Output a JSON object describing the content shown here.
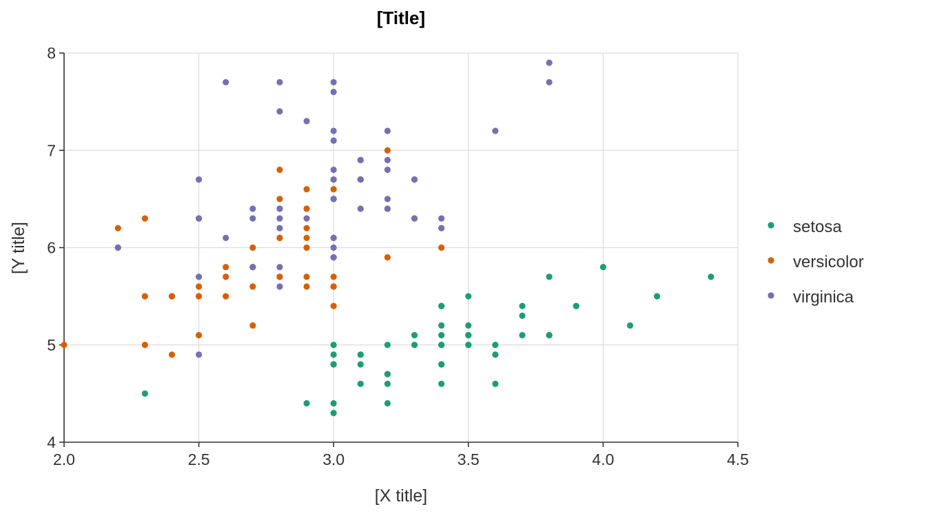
{
  "chart_data": {
    "type": "scatter",
    "title": "[Title]",
    "xlabel": "[X title]",
    "ylabel": "[Y title]",
    "xlim": [
      2.0,
      4.5
    ],
    "ylim": [
      4,
      8
    ],
    "x_ticks": [
      "2.0",
      "2.5",
      "3.0",
      "3.5",
      "4.0",
      "4.5"
    ],
    "y_ticks": [
      "4",
      "5",
      "6",
      "7",
      "8"
    ],
    "grid": true,
    "legend_position": "right",
    "series": [
      {
        "name": "setosa",
        "color": "#1b9e77",
        "points": [
          [
            3.5,
            5.1
          ],
          [
            3.0,
            4.9
          ],
          [
            3.2,
            4.7
          ],
          [
            3.1,
            4.6
          ],
          [
            3.6,
            5.0
          ],
          [
            3.9,
            5.4
          ],
          [
            3.4,
            4.6
          ],
          [
            3.4,
            5.0
          ],
          [
            2.9,
            4.4
          ],
          [
            3.1,
            4.9
          ],
          [
            3.7,
            5.4
          ],
          [
            3.4,
            4.8
          ],
          [
            3.0,
            4.8
          ],
          [
            3.0,
            4.3
          ],
          [
            4.0,
            5.8
          ],
          [
            4.4,
            5.7
          ],
          [
            3.9,
            5.4
          ],
          [
            3.5,
            5.1
          ],
          [
            3.8,
            5.7
          ],
          [
            3.8,
            5.1
          ],
          [
            3.4,
            5.4
          ],
          [
            3.7,
            5.1
          ],
          [
            3.6,
            4.6
          ],
          [
            3.3,
            5.1
          ],
          [
            3.4,
            4.8
          ],
          [
            3.0,
            5.0
          ],
          [
            3.4,
            5.0
          ],
          [
            3.5,
            5.2
          ],
          [
            3.4,
            5.2
          ],
          [
            3.2,
            4.7
          ],
          [
            3.1,
            4.8
          ],
          [
            3.4,
            5.4
          ],
          [
            4.1,
            5.2
          ],
          [
            4.2,
            5.5
          ],
          [
            3.1,
            4.9
          ],
          [
            3.2,
            5.0
          ],
          [
            3.5,
            5.5
          ],
          [
            3.6,
            4.9
          ],
          [
            3.0,
            4.4
          ],
          [
            3.4,
            5.1
          ],
          [
            3.5,
            5.0
          ],
          [
            2.3,
            4.5
          ],
          [
            3.2,
            4.4
          ],
          [
            3.5,
            5.0
          ],
          [
            3.8,
            5.1
          ],
          [
            3.0,
            4.8
          ],
          [
            3.8,
            5.1
          ],
          [
            3.2,
            4.6
          ],
          [
            3.7,
            5.3
          ],
          [
            3.3,
            5.0
          ]
        ]
      },
      {
        "name": "versicolor",
        "color": "#d95f02",
        "points": [
          [
            3.2,
            7.0
          ],
          [
            3.2,
            6.4
          ],
          [
            3.1,
            6.9
          ],
          [
            2.3,
            5.5
          ],
          [
            2.8,
            6.5
          ],
          [
            2.8,
            5.7
          ],
          [
            3.3,
            6.3
          ],
          [
            2.4,
            4.9
          ],
          [
            2.9,
            6.6
          ],
          [
            2.7,
            5.2
          ],
          [
            2.0,
            5.0
          ],
          [
            3.0,
            5.9
          ],
          [
            2.2,
            6.0
          ],
          [
            2.9,
            6.1
          ],
          [
            2.9,
            5.6
          ],
          [
            3.1,
            6.7
          ],
          [
            3.0,
            5.6
          ],
          [
            2.7,
            5.8
          ],
          [
            2.2,
            6.2
          ],
          [
            2.5,
            5.6
          ],
          [
            3.2,
            5.9
          ],
          [
            2.8,
            6.1
          ],
          [
            2.5,
            6.3
          ],
          [
            2.8,
            6.1
          ],
          [
            2.9,
            6.4
          ],
          [
            3.0,
            6.6
          ],
          [
            2.8,
            6.8
          ],
          [
            3.0,
            6.7
          ],
          [
            2.9,
            6.0
          ],
          [
            2.6,
            5.7
          ],
          [
            2.4,
            5.5
          ],
          [
            2.4,
            5.5
          ],
          [
            2.7,
            5.8
          ],
          [
            2.7,
            6.0
          ],
          [
            3.0,
            5.4
          ],
          [
            3.4,
            6.0
          ],
          [
            3.1,
            6.7
          ],
          [
            2.3,
            6.3
          ],
          [
            3.0,
            5.6
          ],
          [
            2.5,
            5.5
          ],
          [
            2.6,
            5.5
          ],
          [
            3.0,
            6.1
          ],
          [
            2.6,
            5.8
          ],
          [
            2.3,
            5.0
          ],
          [
            2.7,
            5.6
          ],
          [
            3.0,
            5.7
          ],
          [
            2.9,
            5.7
          ],
          [
            2.9,
            6.2
          ],
          [
            2.5,
            5.1
          ],
          [
            2.8,
            5.7
          ]
        ]
      },
      {
        "name": "virginica",
        "color": "#7570b3",
        "points": [
          [
            3.3,
            6.3
          ],
          [
            2.7,
            5.8
          ],
          [
            3.0,
            7.1
          ],
          [
            2.9,
            6.3
          ],
          [
            3.0,
            6.5
          ],
          [
            3.0,
            7.6
          ],
          [
            2.5,
            4.9
          ],
          [
            2.9,
            7.3
          ],
          [
            2.5,
            6.7
          ],
          [
            3.6,
            7.2
          ],
          [
            3.2,
            6.5
          ],
          [
            2.7,
            6.4
          ],
          [
            3.0,
            6.8
          ],
          [
            2.5,
            5.7
          ],
          [
            2.8,
            5.8
          ],
          [
            3.2,
            6.4
          ],
          [
            3.0,
            6.5
          ],
          [
            3.8,
            7.7
          ],
          [
            2.6,
            7.7
          ],
          [
            2.2,
            6.0
          ],
          [
            3.2,
            6.9
          ],
          [
            2.8,
            5.6
          ],
          [
            2.8,
            7.7
          ],
          [
            2.7,
            6.3
          ],
          [
            3.3,
            6.7
          ],
          [
            3.2,
            7.2
          ],
          [
            2.8,
            6.2
          ],
          [
            3.0,
            6.1
          ],
          [
            2.8,
            6.4
          ],
          [
            3.0,
            7.2
          ],
          [
            2.8,
            7.4
          ],
          [
            3.8,
            7.9
          ],
          [
            2.8,
            6.4
          ],
          [
            2.8,
            6.3
          ],
          [
            2.6,
            6.1
          ],
          [
            3.0,
            7.7
          ],
          [
            3.4,
            6.3
          ],
          [
            3.1,
            6.4
          ],
          [
            3.0,
            6.0
          ],
          [
            3.1,
            6.9
          ],
          [
            3.1,
            6.7
          ],
          [
            3.1,
            6.9
          ],
          [
            2.7,
            5.8
          ],
          [
            3.2,
            6.8
          ],
          [
            3.3,
            6.7
          ],
          [
            3.0,
            6.7
          ],
          [
            2.5,
            6.3
          ],
          [
            3.0,
            6.5
          ],
          [
            3.4,
            6.2
          ],
          [
            3.0,
            5.9
          ]
        ]
      }
    ]
  }
}
